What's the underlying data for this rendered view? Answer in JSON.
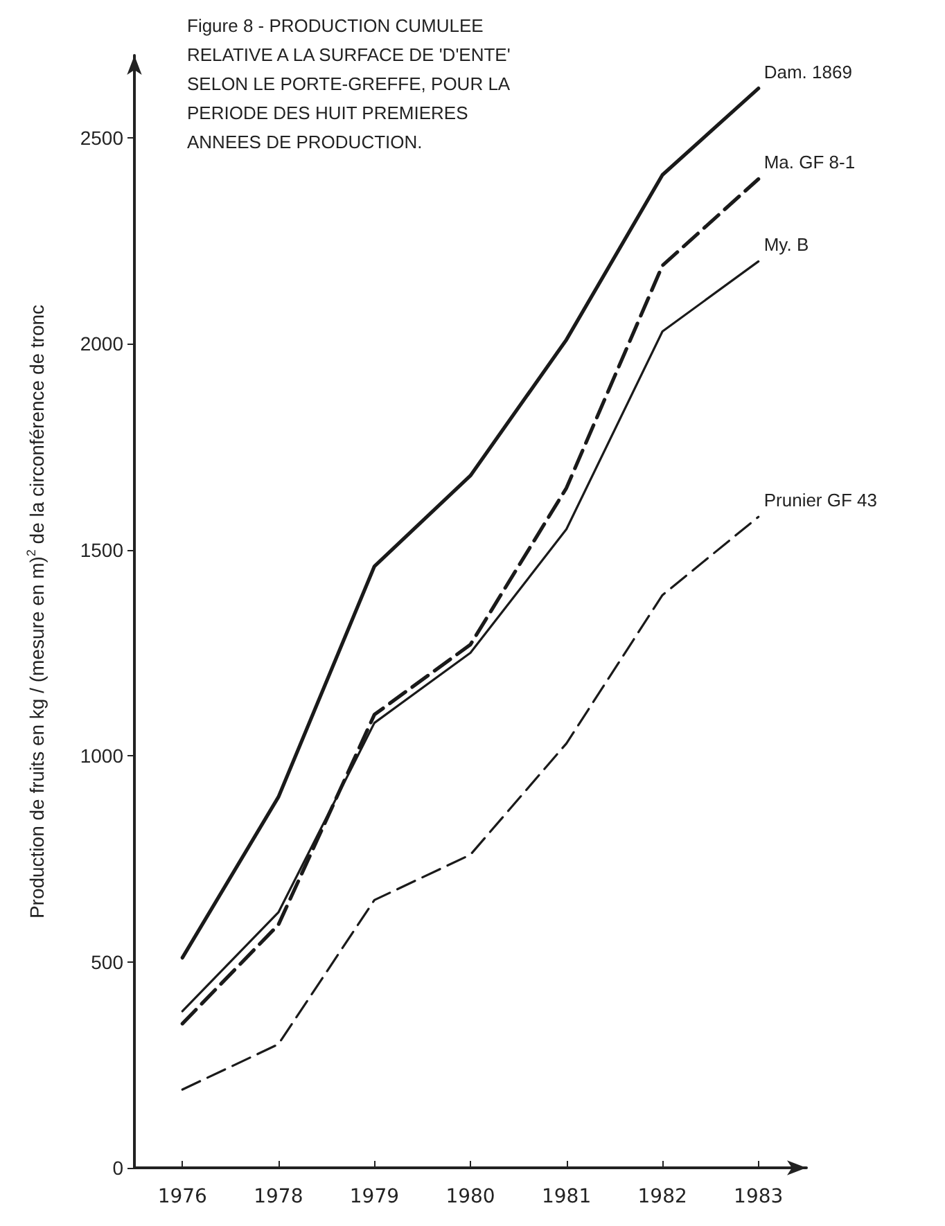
{
  "chart_data": {
    "type": "line",
    "title": "Figure 8 - PRODUCTION CUMULEE RELATIVE A LA SURFACE DE 'D'ENTE' SELON LE PORTE-GREFFE, POUR LA PERIODE DES HUIT PREMIERES ANNEES DE PRODUCTION.",
    "ylabel": "Production de fruits en kg / (mesure en m)$^{2}$ de la circonférence de tronc",
    "categories": [
      "1976",
      "1978",
      "1979",
      "1980",
      "1981",
      "1982",
      "1983"
    ],
    "series": [
      {
        "name": "Dam. 1869",
        "color": "#1a1a1a",
        "line_style": "solid",
        "values": [
          510,
          900,
          1460,
          1680,
          2010,
          2410,
          2620
        ]
      },
      {
        "name": "Ma. GF 8-1",
        "color": "#1a1a1a",
        "line_style": "dashed",
        "values": [
          350,
          590,
          1100,
          1270,
          1650,
          2190,
          2400
        ]
      },
      {
        "name": "My. B",
        "color": "#1a1a1a",
        "line_style": "solid",
        "values": [
          380,
          620,
          1080,
          1250,
          1550,
          2030,
          2200
        ]
      },
      {
        "name": "Prunier GF 43",
        "color": "#1a1a1a",
        "line_style": "dashed",
        "values": [
          190,
          300,
          650,
          760,
          1030,
          1390,
          1580
        ]
      }
    ],
    "ylim": [
      0,
      2700
    ],
    "yticks": [
      0,
      500,
      1000,
      1500,
      2000,
      2500
    ],
    "grid": false,
    "legend": false,
    "marker": "none"
  }
}
